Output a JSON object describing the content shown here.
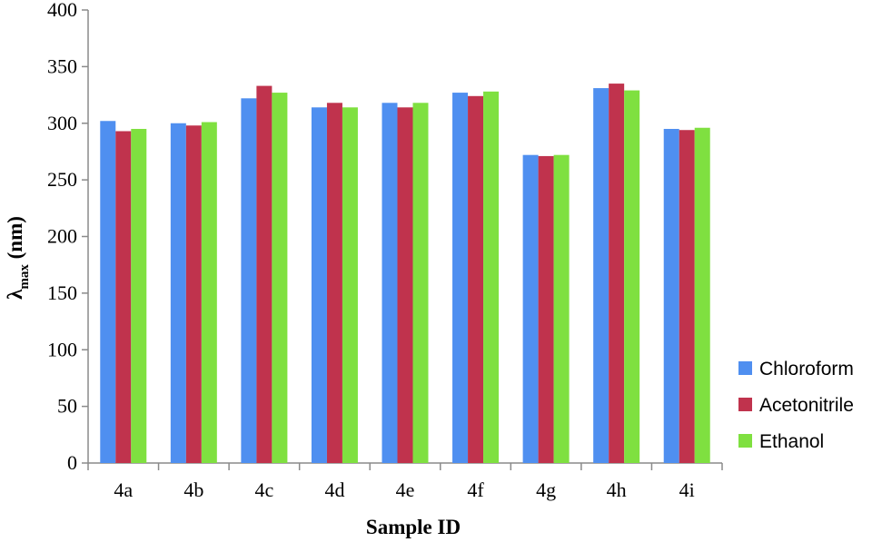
{
  "chart_data": {
    "type": "bar",
    "title": "",
    "xlabel": "Sample ID",
    "ylabel_main": "λ",
    "ylabel_sub": "max",
    "ylabel_unit": " (nm)",
    "categories": [
      "4a",
      "4b",
      "4c",
      "4d",
      "4e",
      "4f",
      "4g",
      "4h",
      "4i"
    ],
    "series": [
      {
        "name": "Chloroform",
        "color": "#4F8FF0",
        "values": [
          302,
          300,
          322,
          314,
          318,
          327,
          272,
          331,
          295
        ]
      },
      {
        "name": "Acetonitrile",
        "color": "#C0334D",
        "values": [
          293,
          298,
          333,
          318,
          314,
          324,
          271,
          335,
          294
        ]
      },
      {
        "name": "Ethanol",
        "color": "#7FE040",
        "values": [
          295,
          301,
          327,
          314,
          318,
          328,
          272,
          329,
          296
        ]
      }
    ],
    "ylim": [
      0,
      400
    ],
    "yticks": [
      "0",
      "50",
      "100",
      "150",
      "200",
      "250",
      "300",
      "350",
      "400"
    ],
    "grid": false,
    "legend_position": "right"
  }
}
